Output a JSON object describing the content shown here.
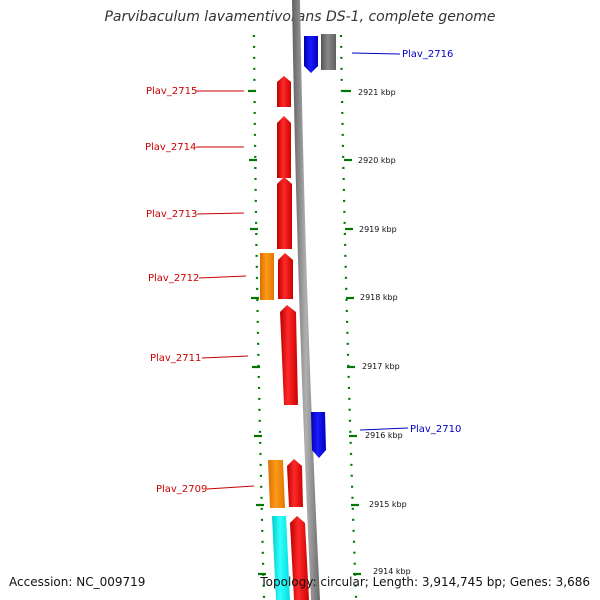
{
  "title": "Parvibaculum lavamentivorans DS-1, complete genome",
  "footer": {
    "accession": "Accession: NC_009719",
    "summary": "Topology: circular; Length: 3,914,745 bp; Genes: 3,686"
  },
  "colors": {
    "forward_gene": "#ff0000",
    "reverse_gene": "#0000ff",
    "orange_gene": "#ff8c00",
    "cyan_gene": "#00ffff",
    "gray_gene": "#777777",
    "tick_color": "#007700",
    "left_label": "#cc0000",
    "right_label": "#0000cc"
  },
  "gene_labels_left": [
    "Plav_2715",
    "Plav_2714",
    "Plav_2713",
    "Plav_2712",
    "Plav_2711",
    "Plav_2709"
  ],
  "gene_labels_right": [
    "Plav_2716",
    "Plav_2710"
  ],
  "kbp_labels": [
    "2921 kbp",
    "2920 kbp",
    "2919 kbp",
    "2918 kbp",
    "2917 kbp",
    "2916 kbp",
    "2915 kbp",
    "2914 kbp"
  ]
}
